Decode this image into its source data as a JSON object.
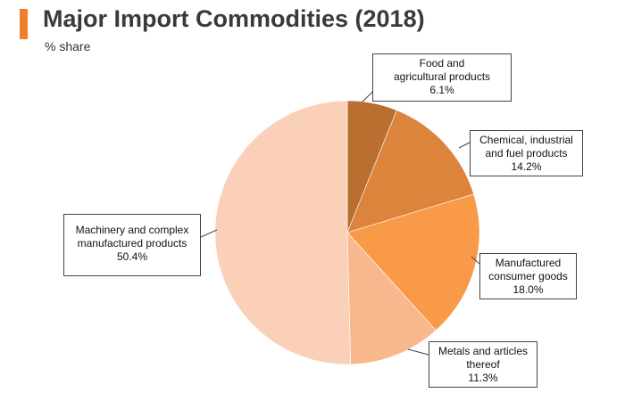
{
  "header": {
    "title": "Major Import Commodities (2018)",
    "subtitle": "% share",
    "accent_color": "#f07f2d"
  },
  "chart_data": {
    "type": "pie",
    "title": "Major Import Commodities (2018)",
    "subtitle": "% share",
    "start_angle_deg": 0,
    "direction": "clockwise",
    "slices": [
      {
        "id": "food",
        "name_lines": [
          "Food and",
          "agricultural products"
        ],
        "value": 6.1,
        "value_label": "6.1%",
        "color": "#b86f30"
      },
      {
        "id": "chemical",
        "name_lines": [
          "Chemical, industrial",
          "and fuel products"
        ],
        "value": 14.2,
        "value_label": "14.2%",
        "color": "#dc833c"
      },
      {
        "id": "manufactured",
        "name_lines": [
          "Manufactured",
          "consumer goods"
        ],
        "value": 18.0,
        "value_label": "18.0%",
        "color": "#f89a47"
      },
      {
        "id": "metals",
        "name_lines": [
          "Metals and articles",
          "thereof"
        ],
        "value": 11.3,
        "value_label": "11.3%",
        "color": "#f8b78d"
      },
      {
        "id": "machinery",
        "name_lines": [
          "Machinery and complex",
          "manufactured products"
        ],
        "value": 50.4,
        "value_label": "50.4%",
        "color": "#fbd0b9"
      }
    ]
  }
}
